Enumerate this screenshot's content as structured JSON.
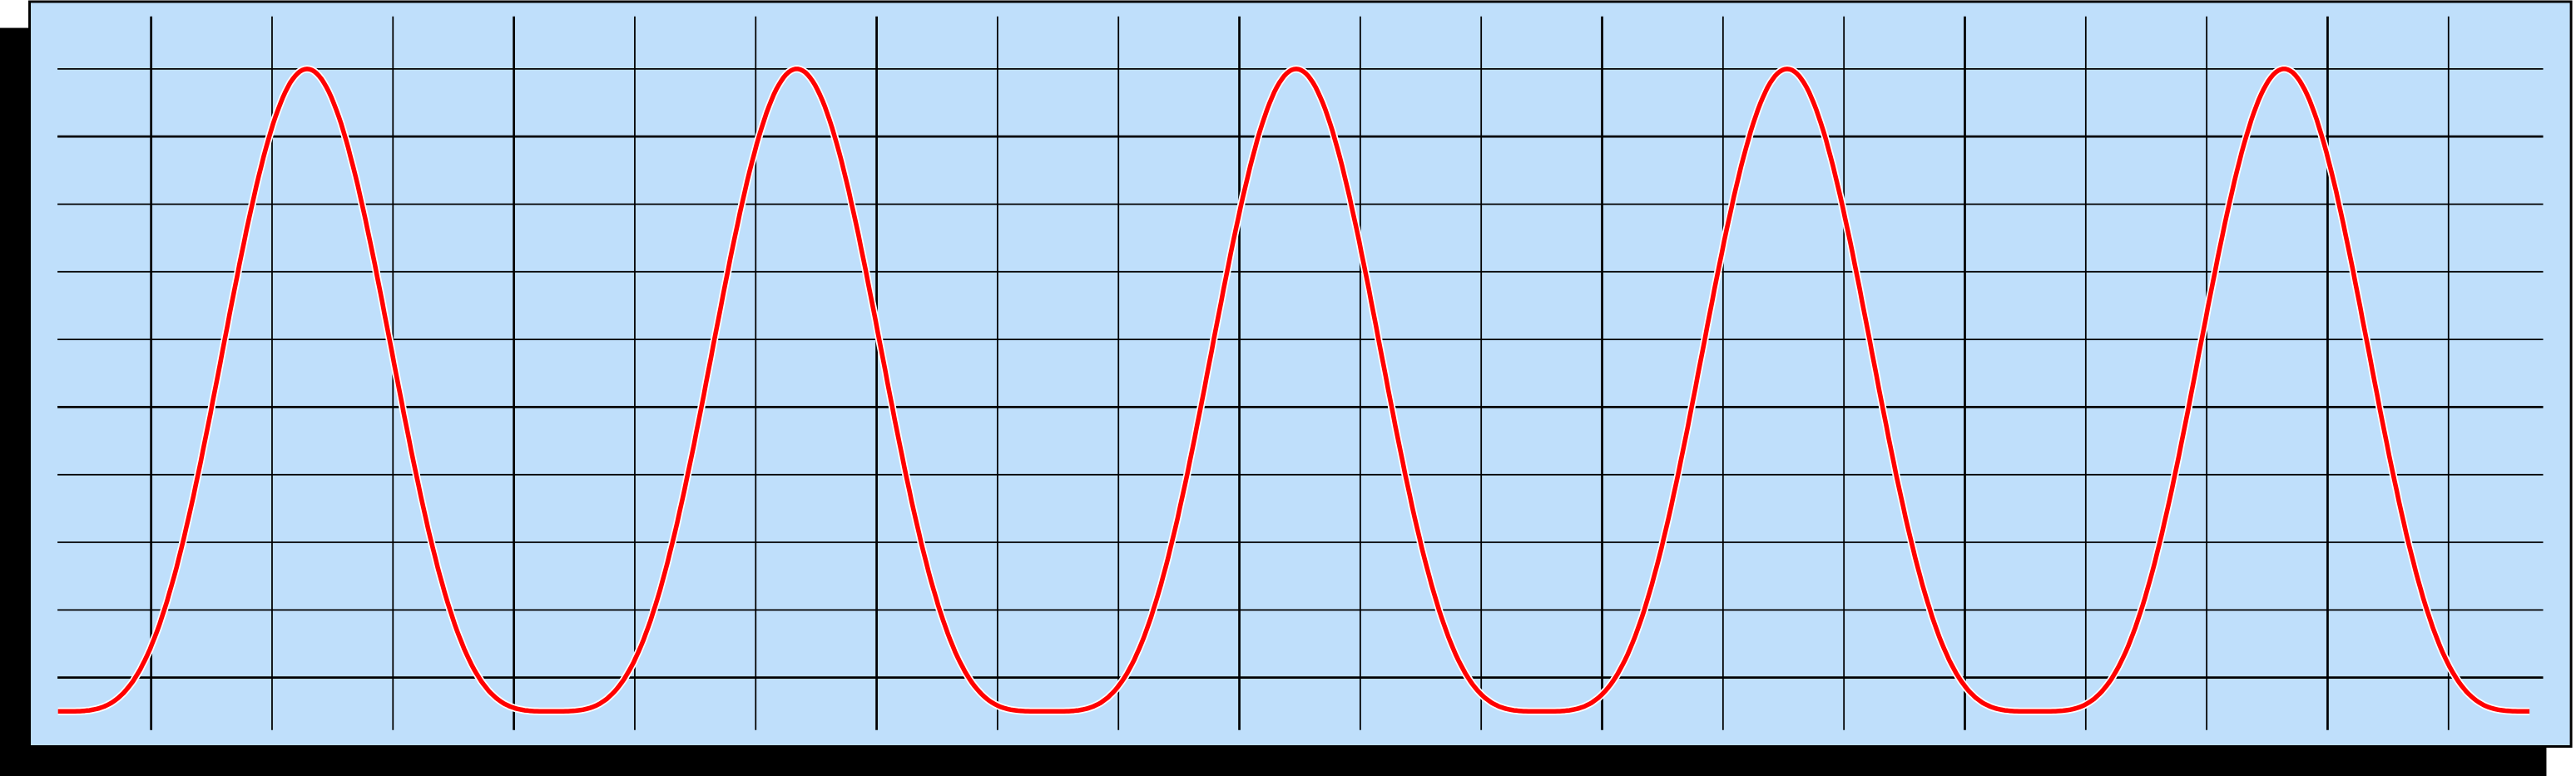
{
  "chart_data": {
    "type": "line",
    "title": "",
    "xlabel": "",
    "ylabel": "",
    "grid": true,
    "legend": "none",
    "xlim": [
      -0.77,
      19.67
    ],
    "ylim": [
      -0.5,
      9
    ],
    "x_gridlines": [
      0,
      1,
      2,
      3,
      4,
      5,
      6,
      7,
      8,
      9,
      10,
      11,
      12,
      13,
      14,
      15,
      16,
      17,
      18,
      19
    ],
    "y_gridlines": [
      0,
      1,
      2,
      3,
      4,
      5,
      6,
      7,
      8,
      9
    ],
    "series": [
      {
        "shape": "periodic pulses",
        "peak_x": [
          1.29,
          5.34,
          9.47,
          13.53,
          17.64
        ],
        "trough_x": [
          3.32,
          7.32,
          11.48,
          15.57
        ],
        "peak_y": 9,
        "trough_y": -0.5,
        "color": "#ff0000"
      }
    ]
  },
  "colors": {
    "background": "#bfdffb",
    "grid": "#000000",
    "curve": "#ff0000",
    "curve_outline": "#ffffff",
    "shadow": "#000000"
  }
}
